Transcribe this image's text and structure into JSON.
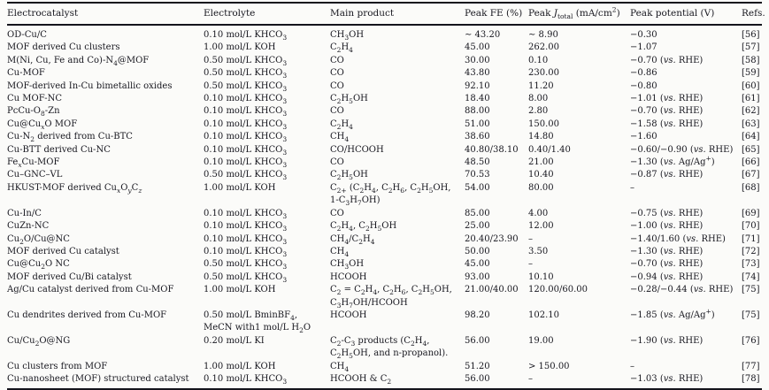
{
  "document": {
    "kind": "journal-article-table",
    "topic": "MOF-derived Cu electrocatalysts for CO2 reduction"
  },
  "colors": {
    "background": "#fbfbf9",
    "text": "#17171f",
    "rule": "#14141c"
  },
  "table": {
    "column_keys": [
      "electrocatalyst",
      "electrolyte",
      "main-product",
      "peak-fe",
      "peak-j-total",
      "peak-potential",
      "refs"
    ],
    "columns": [
      {
        "key": "electrocatalyst",
        "label": "Electrocatalyst"
      },
      {
        "key": "electrolyte",
        "label": "Electrolyte"
      },
      {
        "key": "main-product",
        "label": "Main product"
      },
      {
        "key": "peak-fe",
        "label": "Peak FE (%)"
      },
      {
        "key": "peak-j-total",
        "label": "Peak *J*~total~ (mA/cm^2^)"
      },
      {
        "key": "peak-potential",
        "label": "Peak potential (V)"
      },
      {
        "key": "refs",
        "label": "Refs."
      }
    ],
    "rows": [
      {
        "cells": [
          "OD-Cu/C",
          "0.10 mol/L KHCO~3~",
          "CH~3~OH",
          "∼ 43.20",
          "∼ 8.90",
          "−0.30",
          "[56]"
        ]
      },
      {
        "cells": [
          "MOF derived Cu clusters",
          "1.00 mol/L KOH",
          "C~2~H~4~",
          "45.00",
          "262.00",
          "−1.07",
          "[57]"
        ]
      },
      {
        "cells": [
          "M(Ni, Cu, Fe and Co)-N~4~@MOF",
          "0.50 mol/L KHCO~3~",
          "CO",
          "30.00",
          "0.10",
          "−0.70 (*vs.* RHE)",
          "[58]"
        ]
      },
      {
        "cells": [
          "Cu-MOF",
          "0.50 mol/L KHCO~3~",
          "CO",
          "43.80",
          "230.00",
          "−0.86",
          "[59]"
        ]
      },
      {
        "cells": [
          "MOF-derived In-Cu bimetallic oxides",
          "0.50 mol/L KHCO~3~",
          "CO",
          "92.10",
          "11.20",
          "−0.80",
          "[60]"
        ]
      },
      {
        "cells": [
          "Cu MOF-NC",
          "0.10 mol/L KHCO~3~",
          "C~2~H~5~OH",
          "18.40",
          "8.00",
          "−1.01 (*vs.* RHE)",
          "[61]"
        ]
      },
      {
        "cells": [
          "PcCu-O~8~-Zn",
          "0.10 mol/L KHCO~3~",
          "CO",
          "88.00",
          "2.80",
          "−0.70 (*vs.* RHE)",
          "[62]"
        ]
      },
      {
        "cells": [
          "Cu@Cu~*x*~O MOF",
          "0.10 mol/L KHCO~3~",
          "C~2~H~4~",
          "51.00",
          "150.00",
          "−1.58 (*vs.* RHE)",
          "[63]"
        ]
      },
      {
        "cells": [
          "Cu-N~2~ derived from Cu-BTC",
          "0.10 mol/L KHCO~3~",
          "CH~4~",
          "38.60",
          "14.80",
          "−1.60",
          "[64]"
        ]
      },
      {
        "cells": [
          "Cu-BTT derived Cu-NC",
          "0.10 mol/L KHCO~3~",
          "CO/HCOOH",
          "40.80/38.10",
          "0.40/1.40",
          "−0.60/−0.90 (*vs.* RHE)",
          "[65]"
        ]
      },
      {
        "cells": [
          "Fe~*x*~Cu-MOF",
          "0.10 mol/L KHCO~3~",
          "CO",
          "48.50",
          "21.00",
          "−1.30 (*vs.* Ag/Ag^+^)",
          "[66]"
        ]
      },
      {
        "cells": [
          "Cu–GNC–VL",
          "0.50 mol/L KHCO~3~",
          "C~2~H~5~OH",
          "70.53",
          "10.40",
          "−0.87 (*vs.* RHE)",
          "[67]"
        ]
      },
      {
        "cells": [
          "HKUST-MOF derived Cu~*x*~O~*y*~C~*z*~",
          "1.00 mol/L KOH",
          "C~2+~ (C~2~H~4~, C~2~H~6~, C~2~H~5~OH,\n1-C~3~H~7~OH)",
          "54.00",
          "80.00",
          "–",
          "[68]"
        ]
      },
      {
        "cells": [
          "Cu-In/C",
          "0.10 mol/L KHCO~3~",
          "CO",
          "85.00",
          "4.00",
          "−0.75 (*vs.* RHE)",
          "[69]"
        ]
      },
      {
        "cells": [
          "CuZn-NC",
          "0.10 mol/L KHCO~3~",
          "C~2~H~4~, C~2~H~5~OH",
          "25.00",
          "12.00",
          "−1.00 (*vs.* RHE)",
          "[70]"
        ]
      },
      {
        "cells": [
          "Cu~2~O/Cu@NC",
          "0.10 mol/L KHCO~3~",
          "CH~4~/C~2~H~4~",
          "20.40/23.90",
          "–",
          "−1.40/1.60 (*vs.* RHE)",
          "[71]"
        ]
      },
      {
        "cells": [
          "MOF derived Cu catalyst",
          "0.10 mol/L KHCO~3~",
          "CH~4~",
          "50.00",
          "3.50",
          "−1.30 (*vs.* RHE)",
          "[72]"
        ]
      },
      {
        "cells": [
          "Cu@Cu~2~O NC",
          "0.50 mol/L KHCO~3~",
          "CH~3~OH",
          "45.00",
          "–",
          "−0.70 (*vs.* RHE)",
          "[73]"
        ]
      },
      {
        "cells": [
          "MOF derived Cu/Bi catalyst",
          "0.50 mol/L KHCO~3~",
          "HCOOH",
          "93.00",
          "10.10",
          "−0.94 (*vs.* RHE)",
          "[74]"
        ]
      },
      {
        "cells": [
          "Ag/Cu catalyst derived from Cu-MOF",
          "1.00 mol/L KOH",
          "C~2~ = C~2~H~4~, C~2~H~6~, C~2~H~5~OH,\nC~3~H~7~OH/HCOOH",
          "21.00/40.00",
          "120.00/60.00",
          "−0.28/−0.44 (*vs.* RHE)",
          "[75]"
        ]
      },
      {
        "cells": [
          "Cu dendrites derived from Cu-MOF",
          "0.50 mol/L BminBF~4~,\nMeCN with1 mol/L H~2~O",
          "HCOOH",
          "98.20",
          "102.10",
          "−1.85 (*vs.* Ag/Ag^+^)",
          "[75]"
        ]
      },
      {
        "cells": [
          "Cu/Cu~2~O@NG",
          "0.20 mol/L KI",
          "C~2~-C~3~ products (C~2~H~4~,\nC~2~H~5~OH, and n-propanol).",
          "56.00",
          "19.00",
          "−1.90 (*vs.* RHE)",
          "[76]"
        ]
      },
      {
        "cells": [
          "Cu clusters from MOF",
          "1.00 mol/L KOH",
          "CH~4~",
          "51.20",
          "> 150.00",
          "–",
          "[77]"
        ]
      },
      {
        "cells": [
          "Cu-nanosheet (MOF) structured catalyst",
          "0.10 mol/L KHCO~3~",
          "HCOOH & C~2~",
          "56.00",
          "–",
          "−1.03 (*vs.* RHE)",
          "[78]"
        ]
      }
    ]
  }
}
